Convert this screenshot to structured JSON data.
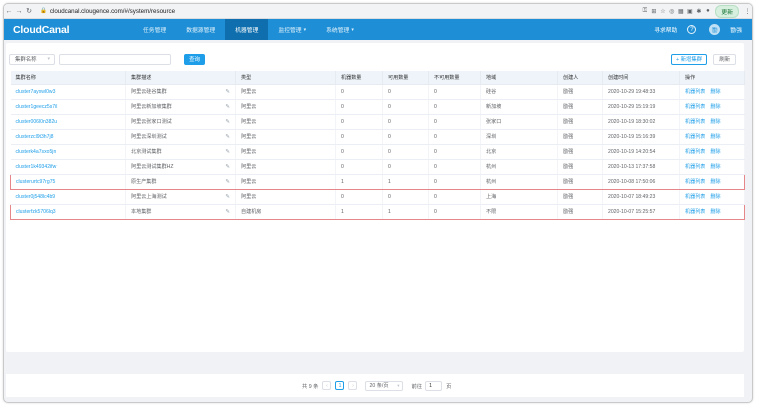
{
  "browser": {
    "url": "cloudcanal.clougence.com/#/system/resource",
    "update_label": "更新"
  },
  "nav": {
    "logo": "CloudCanal",
    "items": [
      "任务管理",
      "数据源管理",
      "机器管理",
      "监控管理",
      "系统管理"
    ],
    "active_index": 2,
    "help": "寻求帮助",
    "user": "勖强"
  },
  "filter": {
    "field": "集群名称",
    "search_value": "",
    "search_button": "查询",
    "add_button": "+ 新增集群",
    "refresh_button": "刷新"
  },
  "table": {
    "columns": [
      "集群名称",
      "集群描述",
      "类型",
      "机器数量",
      "可用数量",
      "不可用数量",
      "地域",
      "创建人",
      "创建时间",
      "操作"
    ],
    "rows": [
      {
        "name": "cluster7ayxwl0w3",
        "desc": "阿里云硅谷集群",
        "type": "阿里云",
        "machines": "0",
        "available": "0",
        "unavailable": "0",
        "region": "硅谷",
        "creator": "勖强",
        "created": "2020-10-29 19:48:33",
        "highlight": false
      },
      {
        "name": "cluster1geecz5s7il",
        "desc": "阿里云新加坡集群",
        "type": "阿里云",
        "machines": "0",
        "available": "0",
        "unavailable": "0",
        "region": "新加坡",
        "creator": "勖强",
        "created": "2020-10-29 15:19:19",
        "highlight": false
      },
      {
        "name": "cluster006l0n382u",
        "desc": "阿里云张家口测试",
        "type": "阿里云",
        "machines": "0",
        "available": "0",
        "unavailable": "0",
        "region": "张家口",
        "creator": "勖强",
        "created": "2020-10-19 18:30:02",
        "highlight": false
      },
      {
        "name": "clusterzcl9t3h7j8",
        "desc": "阿里云深圳测试",
        "type": "阿里云",
        "machines": "0",
        "available": "0",
        "unavailable": "0",
        "region": "深圳",
        "creator": "勖强",
        "created": "2020-10-19 15:16:39",
        "highlight": false
      },
      {
        "name": "clusterk4a7sxo5jn",
        "desc": "北京测试集群",
        "type": "阿里云",
        "machines": "0",
        "available": "0",
        "unavailable": "0",
        "region": "北京",
        "creator": "勖强",
        "created": "2020-10-19 14:20:54",
        "highlight": false
      },
      {
        "name": "cluster1k49342ifw",
        "desc": "阿里云测试集群HZ",
        "type": "阿里云",
        "machines": "0",
        "available": "0",
        "unavailable": "0",
        "region": "杭州",
        "creator": "勖强",
        "created": "2020-10-13 17:37:58",
        "highlight": false
      },
      {
        "name": "clusterurtc97rg75",
        "desc": "原生产集群",
        "type": "阿里云",
        "machines": "1",
        "available": "1",
        "unavailable": "0",
        "region": "杭州",
        "creator": "勖强",
        "created": "2020-10-08 17:50:06",
        "highlight": true
      },
      {
        "name": "cluster0j548lc4b9",
        "desc": "阿里云上海测试",
        "type": "阿里云",
        "machines": "0",
        "available": "0",
        "unavailable": "0",
        "region": "上海",
        "creator": "勖强",
        "created": "2020-10-07 18:49:23",
        "highlight": false
      },
      {
        "name": "clusterfzk5706lq3",
        "desc": "本地集群",
        "type": "自建机房",
        "machines": "1",
        "available": "1",
        "unavailable": "0",
        "region": "不限",
        "creator": "勖强",
        "created": "2020-10-07 15:25:57",
        "highlight": true
      }
    ],
    "action_list": "机器列表",
    "action_delete": "删除"
  },
  "pagination": {
    "total": "共 9 条",
    "current_page": "1",
    "page_size": "20 条/页",
    "goto_label": "前往",
    "goto_value": "1",
    "goto_suffix": "页"
  },
  "colors": {
    "nav": "#1e8fd6",
    "accent": "#1e9ee9",
    "highlight_border": "#e5868b"
  }
}
